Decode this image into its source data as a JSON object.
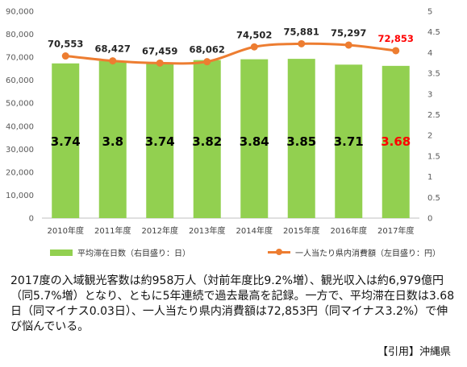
{
  "chart_data": {
    "type": "bar+line",
    "categories": [
      "2010年度",
      "2011年度",
      "2012年度",
      "2013年度",
      "2014年度",
      "2015年度",
      "2016年度",
      "2017年度"
    ],
    "series": [
      {
        "name": "平均滞在日数（右目盛り：日）",
        "type": "bar",
        "axis": "right",
        "values": [
          3.74,
          3.8,
          3.74,
          3.82,
          3.84,
          3.85,
          3.71,
          3.68
        ],
        "labels": [
          "3.74",
          "3.8",
          "3.74",
          "3.82",
          "3.84",
          "3.85",
          "3.71",
          "3.68"
        ],
        "color": "#92d050"
      },
      {
        "name": "一人当たり県内消費額（左目盛り：円）",
        "type": "line",
        "axis": "left",
        "values": [
          70553,
          68427,
          67459,
          68062,
          74502,
          75881,
          75297,
          72853
        ],
        "labels": [
          "70,553",
          "68,427",
          "67,459",
          "68,062",
          "74,502",
          "75,881",
          "75,297",
          "72,853"
        ],
        "color": "#ed7d31"
      }
    ],
    "highlight_index": 7,
    "highlight_color": "#ff0000",
    "y_left": {
      "min": 0,
      "max": 90000,
      "step": 10000,
      "ticks": [
        "0",
        "10,000",
        "20,000",
        "30,000",
        "40,000",
        "50,000",
        "60,000",
        "70,000",
        "80,000",
        "90,000"
      ]
    },
    "y_right": {
      "min": 0,
      "max": 5,
      "step": 0.5,
      "ticks": [
        "0",
        "0.5",
        "1",
        "1.5",
        "2",
        "2.5",
        "3",
        "3.5",
        "4",
        "4.5",
        "5"
      ]
    },
    "grid": false,
    "legend_position": "bottom"
  },
  "caption": "2017度の入域観光客数は約958万人（対前年度比9.2%増）、観光収入は約6,979億円（同5.7%増）となり、ともに5年連続で過去最高を記録。一方で、平均滞在日数は3.68日（同マイナス0.03日）、一人当たり県内消費額は72,853円（同マイナス3.2%）で伸び悩んでいる。",
  "source": "【引用】沖縄県"
}
